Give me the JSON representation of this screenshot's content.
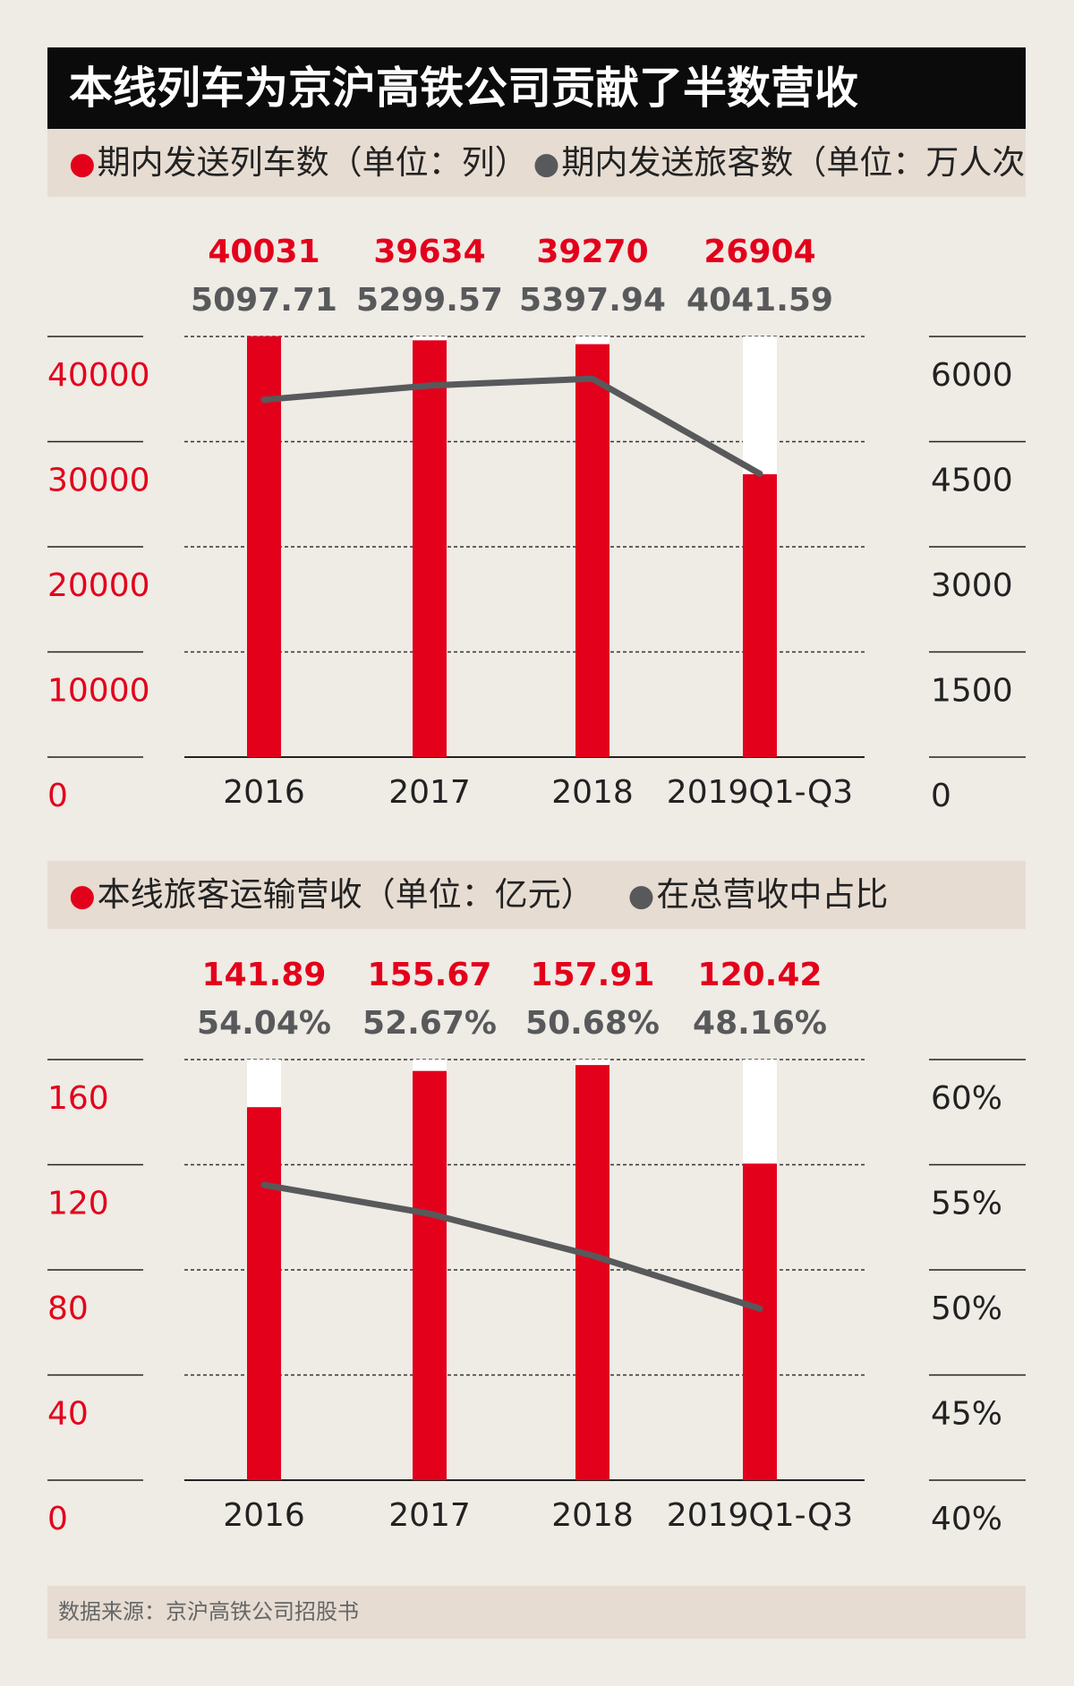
{
  "header": {
    "title": "本线列车为京沪高铁公司贡献了半数营收"
  },
  "source": "数据来源：京沪高铁公司招股书",
  "colors": {
    "red": "#e3001b",
    "gray": "#58595b",
    "legend_bg": "#e6dcd2",
    "bg": "#efebe5"
  },
  "chart_data": [
    {
      "type": "bar",
      "categories": [
        "2016",
        "2017",
        "2018",
        "2019Q1-Q3"
      ],
      "legend": [
        "期内发送列车数（单位：列）",
        "期内发送旅客数（单位：万人次）"
      ],
      "left_ticks": [
        "0",
        "10000",
        "20000",
        "30000",
        "40000"
      ],
      "right_ticks": [
        "0",
        "1500",
        "3000",
        "4500",
        "6000"
      ],
      "ylim_left": [
        0,
        40000
      ],
      "ylim_right": [
        0,
        6000
      ],
      "series": [
        {
          "name": "期内发送列车数（单位：列）",
          "kind": "bar",
          "axis": "left",
          "values": [
            40031,
            39634,
            39270,
            26904
          ],
          "labels": [
            "40031",
            "39634",
            "39270",
            "26904"
          ]
        },
        {
          "name": "期内发送旅客数（单位：万人次）",
          "kind": "line",
          "axis": "right",
          "values": [
            5097.71,
            5299.57,
            5397.94,
            4041.59
          ],
          "labels": [
            "5097.71",
            "5299.57",
            "5397.94",
            "4041.59"
          ]
        }
      ],
      "grid": true
    },
    {
      "type": "bar",
      "categories": [
        "2016",
        "2017",
        "2018",
        "2019Q1-Q3"
      ],
      "legend": [
        "本线旅客运输营收（单位：亿元）",
        "在总营收中占比"
      ],
      "left_ticks": [
        "0",
        "40",
        "80",
        "120",
        "160"
      ],
      "right_ticks": [
        "40%",
        "45%",
        "50%",
        "55%",
        "60%"
      ],
      "ylim_left": [
        0,
        160
      ],
      "ylim_right": [
        40,
        60
      ],
      "series": [
        {
          "name": "本线旅客运输营收（单位：亿元）",
          "kind": "bar",
          "axis": "left",
          "values": [
            141.89,
            155.67,
            157.91,
            120.42
          ],
          "labels": [
            "141.89",
            "155.67",
            "157.91",
            "120.42"
          ]
        },
        {
          "name": "在总营收中占比",
          "kind": "line",
          "axis": "right",
          "values": [
            54.04,
            52.67,
            50.68,
            48.16
          ],
          "labels": [
            "54.04%",
            "52.67%",
            "50.68%",
            "48.16%"
          ]
        }
      ],
      "grid": true
    }
  ]
}
